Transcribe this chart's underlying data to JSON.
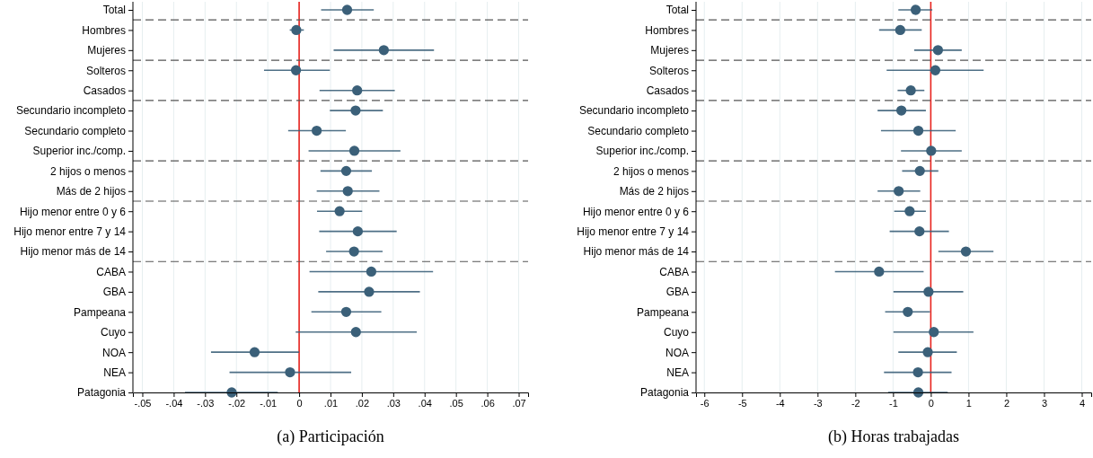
{
  "chart_data": [
    {
      "type": "scatter",
      "orientation": "horizontal",
      "title": "(a) Participación",
      "categories": [
        "Total",
        "Hombres",
        "Mujeres",
        "Solteros",
        "Casados",
        "Secundario incompleto",
        "Secundario completo",
        "Superior inc./comp.",
        "2 hijos o menos",
        "Más de 2 hijos",
        "Hijo menor entre 0 y 6",
        "Hijo menor entre 7 y 14",
        "Hijo menor más de 14",
        "CABA",
        "GBA",
        "Pampeana",
        "Cuyo",
        "NOA",
        "NEA",
        "Patagonia"
      ],
      "values": [
        0.0153,
        -0.0009,
        0.027,
        -0.001,
        0.0185,
        0.018,
        0.0056,
        0.0176,
        0.015,
        0.0155,
        0.0129,
        0.0187,
        0.0175,
        0.023,
        0.0223,
        0.015,
        0.0181,
        -0.0142,
        -0.0029,
        -0.0215
      ],
      "errors": [
        [
          0.007,
          0.0238
        ],
        [
          -0.003,
          0.0015
        ],
        [
          0.011,
          0.043
        ],
        [
          -0.0112,
          0.0098
        ],
        [
          0.0065,
          0.0305
        ],
        [
          0.0098,
          0.0267
        ],
        [
          -0.0035,
          0.0149
        ],
        [
          0.003,
          0.0323
        ],
        [
          0.0068,
          0.0232
        ],
        [
          0.0056,
          0.0256
        ],
        [
          0.0057,
          0.0201
        ],
        [
          0.0064,
          0.0311
        ],
        [
          0.0086,
          0.0266
        ],
        [
          0.0033,
          0.0427
        ],
        [
          0.0061,
          0.0385
        ],
        [
          0.0039,
          0.0262
        ],
        [
          -0.0011,
          0.0375
        ],
        [
          -0.0281,
          0.0
        ],
        [
          -0.0222,
          0.0166
        ],
        [
          -0.0364,
          -0.0068
        ]
      ],
      "color": "#3b6079",
      "xlim": [
        -0.053,
        0.073
      ],
      "xticks": [
        {
          "value": -0.05,
          "label": "-.05"
        },
        {
          "value": -0.04,
          "label": "-.04"
        },
        {
          "value": -0.03,
          "label": "-.03"
        },
        {
          "value": -0.02,
          "label": "-.02"
        },
        {
          "value": -0.01,
          "label": "-.01"
        },
        0,
        {
          "value": 0.01,
          "label": ".01"
        },
        {
          "value": 0.02,
          "label": ".02"
        },
        {
          "value": 0.03,
          "label": ".03"
        },
        {
          "value": 0.04,
          "label": ".04"
        },
        {
          "value": 0.05,
          "label": ".05"
        },
        {
          "value": 0.06,
          "label": ".06"
        },
        {
          "value": 0.07,
          "label": ".07"
        }
      ],
      "grid": "x",
      "marker": "circle",
      "ref_lines": [
        {
          "axis": "x",
          "value": 0,
          "color": "#e8231e",
          "line_style": "solid"
        }
      ]
    },
    {
      "type": "scatter",
      "orientation": "horizontal",
      "title": "(b) Horas trabajadas",
      "categories": [
        "Total",
        "Hombres",
        "Mujeres",
        "Solteros",
        "Casados",
        "Secundario incompleto",
        "Secundario completo",
        "Superior inc./comp.",
        "2 hijos o menos",
        "Más de 2 hijos",
        "Hijo menor entre 0 y 6",
        "Hijo menor entre 7 y 14",
        "Hijo menor más de 14",
        "CABA",
        "GBA",
        "Pampeana",
        "Cuyo",
        "NOA",
        "NEA",
        "Patagonia"
      ],
      "values": [
        -0.4,
        -0.81,
        0.19,
        0.12,
        -0.53,
        -0.78,
        -0.33,
        0.01,
        -0.29,
        -0.85,
        -0.56,
        -0.3,
        0.93,
        -1.37,
        -0.06,
        -0.61,
        0.08,
        -0.08,
        -0.34,
        -0.33
      ],
      "errors": [
        [
          -0.86,
          0.04
        ],
        [
          -1.37,
          -0.24
        ],
        [
          -0.44,
          0.82
        ],
        [
          -1.17,
          1.4
        ],
        [
          -0.88,
          -0.17
        ],
        [
          -1.41,
          -0.13
        ],
        [
          -1.32,
          0.66
        ],
        [
          -0.79,
          0.82
        ],
        [
          -0.76,
          0.2
        ],
        [
          -1.41,
          -0.28
        ],
        [
          -0.97,
          -0.13
        ],
        [
          -1.09,
          0.48
        ],
        [
          0.2,
          1.66
        ],
        [
          -2.54,
          -0.19
        ],
        [
          -0.99,
          0.86
        ],
        [
          -1.21,
          -0.02
        ],
        [
          -0.99,
          1.13
        ],
        [
          -0.86,
          0.69
        ],
        [
          -1.24,
          0.55
        ],
        [
          -1.13,
          0.45
        ]
      ],
      "color": "#3b6079",
      "xlim": [
        -6.22,
        4.25
      ],
      "xticks": [
        -6,
        -5,
        -4,
        -3,
        -2,
        -1,
        0,
        1,
        2,
        3,
        4
      ],
      "grid": "x",
      "marker": "circle",
      "ref_lines": [
        {
          "axis": "x",
          "value": 0,
          "color": "#e8231e",
          "line_style": "solid"
        }
      ]
    }
  ]
}
